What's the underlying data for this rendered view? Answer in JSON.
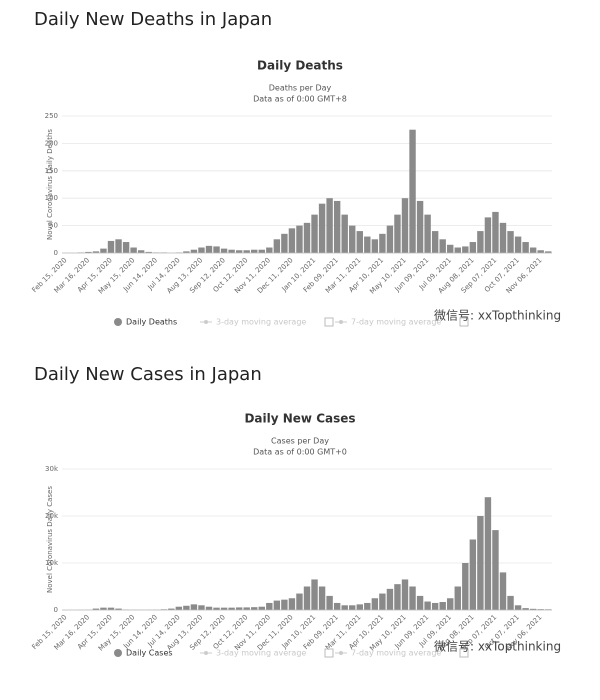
{
  "chart_data": [
    {
      "type": "bar",
      "heading": "Daily New Deaths in Japan",
      "title": "Daily Deaths",
      "subtitle": "Deaths per Day",
      "note": "Data as of 0:00 GMT+8",
      "y_label": "Novel Coronavirus Daily Deaths",
      "categories": [
        "Feb 15, 2020",
        null,
        null,
        "Mar 16, 2020",
        null,
        null,
        "Apr 15, 2020",
        null,
        null,
        "May 15, 2020",
        null,
        null,
        "Jun 14, 2020",
        null,
        null,
        "Jul 14, 2020",
        null,
        null,
        "Aug 13, 2020",
        null,
        null,
        "Sep 12, 2020",
        null,
        null,
        "Oct 12, 2020",
        null,
        null,
        "Nov 11, 2020",
        null,
        null,
        "Dec 11, 2020",
        null,
        null,
        "Jan 10, 2021",
        null,
        null,
        "Feb 09, 2021",
        null,
        null,
        "Mar 11, 2021",
        null,
        null,
        "Apr 10, 2021",
        null,
        null,
        "May 10, 2021",
        null,
        null,
        "Jun 09, 2021",
        null,
        null,
        "Jul 09, 2021",
        null,
        null,
        "Aug 08, 2021",
        null,
        null,
        "Sep 07, 2021",
        null,
        null,
        "Oct 07, 2021",
        null,
        null,
        "Nov 06, 2021",
        null
      ],
      "series": [
        {
          "name": "Daily Deaths",
          "color": "#8a8a8a",
          "values": [
            0,
            0,
            1,
            2,
            3,
            8,
            22,
            25,
            20,
            10,
            5,
            2,
            1,
            1,
            0,
            1,
            3,
            6,
            10,
            13,
            12,
            8,
            6,
            5,
            5,
            6,
            6,
            10,
            25,
            35,
            45,
            50,
            55,
            70,
            90,
            100,
            95,
            70,
            50,
            40,
            30,
            25,
            35,
            50,
            70,
            100,
            225,
            95,
            70,
            40,
            25,
            15,
            10,
            12,
            20,
            40,
            65,
            75,
            55,
            40,
            30,
            20,
            10,
            5,
            3
          ]
        }
      ],
      "legend_extra": [
        "3-day moving average",
        "7-day moving average"
      ],
      "ylim": [
        0,
        250
      ],
      "yticks": [
        0,
        50,
        100,
        150,
        200,
        250
      ],
      "grid": true,
      "watermark": "微信号: xxTopthinking"
    },
    {
      "type": "bar",
      "heading": "Daily New Cases in Japan",
      "title": "Daily New Cases",
      "subtitle": "Cases per Day",
      "note": "Data as of 0:00 GMT+0",
      "y_label": "Novel Coronavirus Daily Cases",
      "categories": [
        "Feb 15, 2020",
        null,
        null,
        "Mar 16, 2020",
        null,
        null,
        "Apr 15, 2020",
        null,
        null,
        "May 15, 2020",
        null,
        null,
        "Jun 14, 2020",
        null,
        null,
        "Jul 14, 2020",
        null,
        null,
        "Aug 13, 2020",
        null,
        null,
        "Sep 12, 2020",
        null,
        null,
        "Oct 12, 2020",
        null,
        null,
        "Nov 11, 2020",
        null,
        null,
        "Dec 11, 2020",
        null,
        null,
        "Jan 10, 2021",
        null,
        null,
        "Feb 09, 2021",
        null,
        null,
        "Mar 11, 2021",
        null,
        null,
        "Apr 10, 2021",
        null,
        null,
        "May 10, 2021",
        null,
        null,
        "Jun 09, 2021",
        null,
        null,
        "Jul 09, 2021",
        null,
        null,
        "Aug 08, 2021",
        null,
        null,
        "Sep 07, 2021",
        null,
        null,
        "Oct 07, 2021",
        null,
        null,
        "Nov 06, 2021",
        null
      ],
      "series": [
        {
          "name": "Daily Cases",
          "color": "#8a8a8a",
          "values": [
            0,
            0,
            30,
            50,
            300,
            500,
            500,
            300,
            100,
            50,
            40,
            40,
            60,
            150,
            300,
            700,
            900,
            1200,
            1000,
            700,
            500,
            500,
            500,
            550,
            550,
            600,
            700,
            1500,
            2000,
            2200,
            2500,
            3500,
            5000,
            6500,
            5000,
            3000,
            1500,
            1000,
            1000,
            1200,
            1500,
            2500,
            3500,
            4500,
            5500,
            6500,
            5000,
            3000,
            1800,
            1500,
            1700,
            2500,
            5000,
            10000,
            15000,
            20000,
            24000,
            17000,
            8000,
            3000,
            1000,
            400,
            250,
            180,
            150
          ]
        }
      ],
      "legend_extra": [
        "3-day moving average",
        "7-day moving average"
      ],
      "ylim": [
        0,
        30000
      ],
      "yticks": [
        0,
        {
          "value": 10000,
          "label": "10k"
        },
        {
          "value": 20000,
          "label": "20k"
        },
        {
          "value": 30000,
          "label": "30k"
        }
      ],
      "grid": true,
      "watermark": "微信号: xxTopthinking"
    }
  ]
}
